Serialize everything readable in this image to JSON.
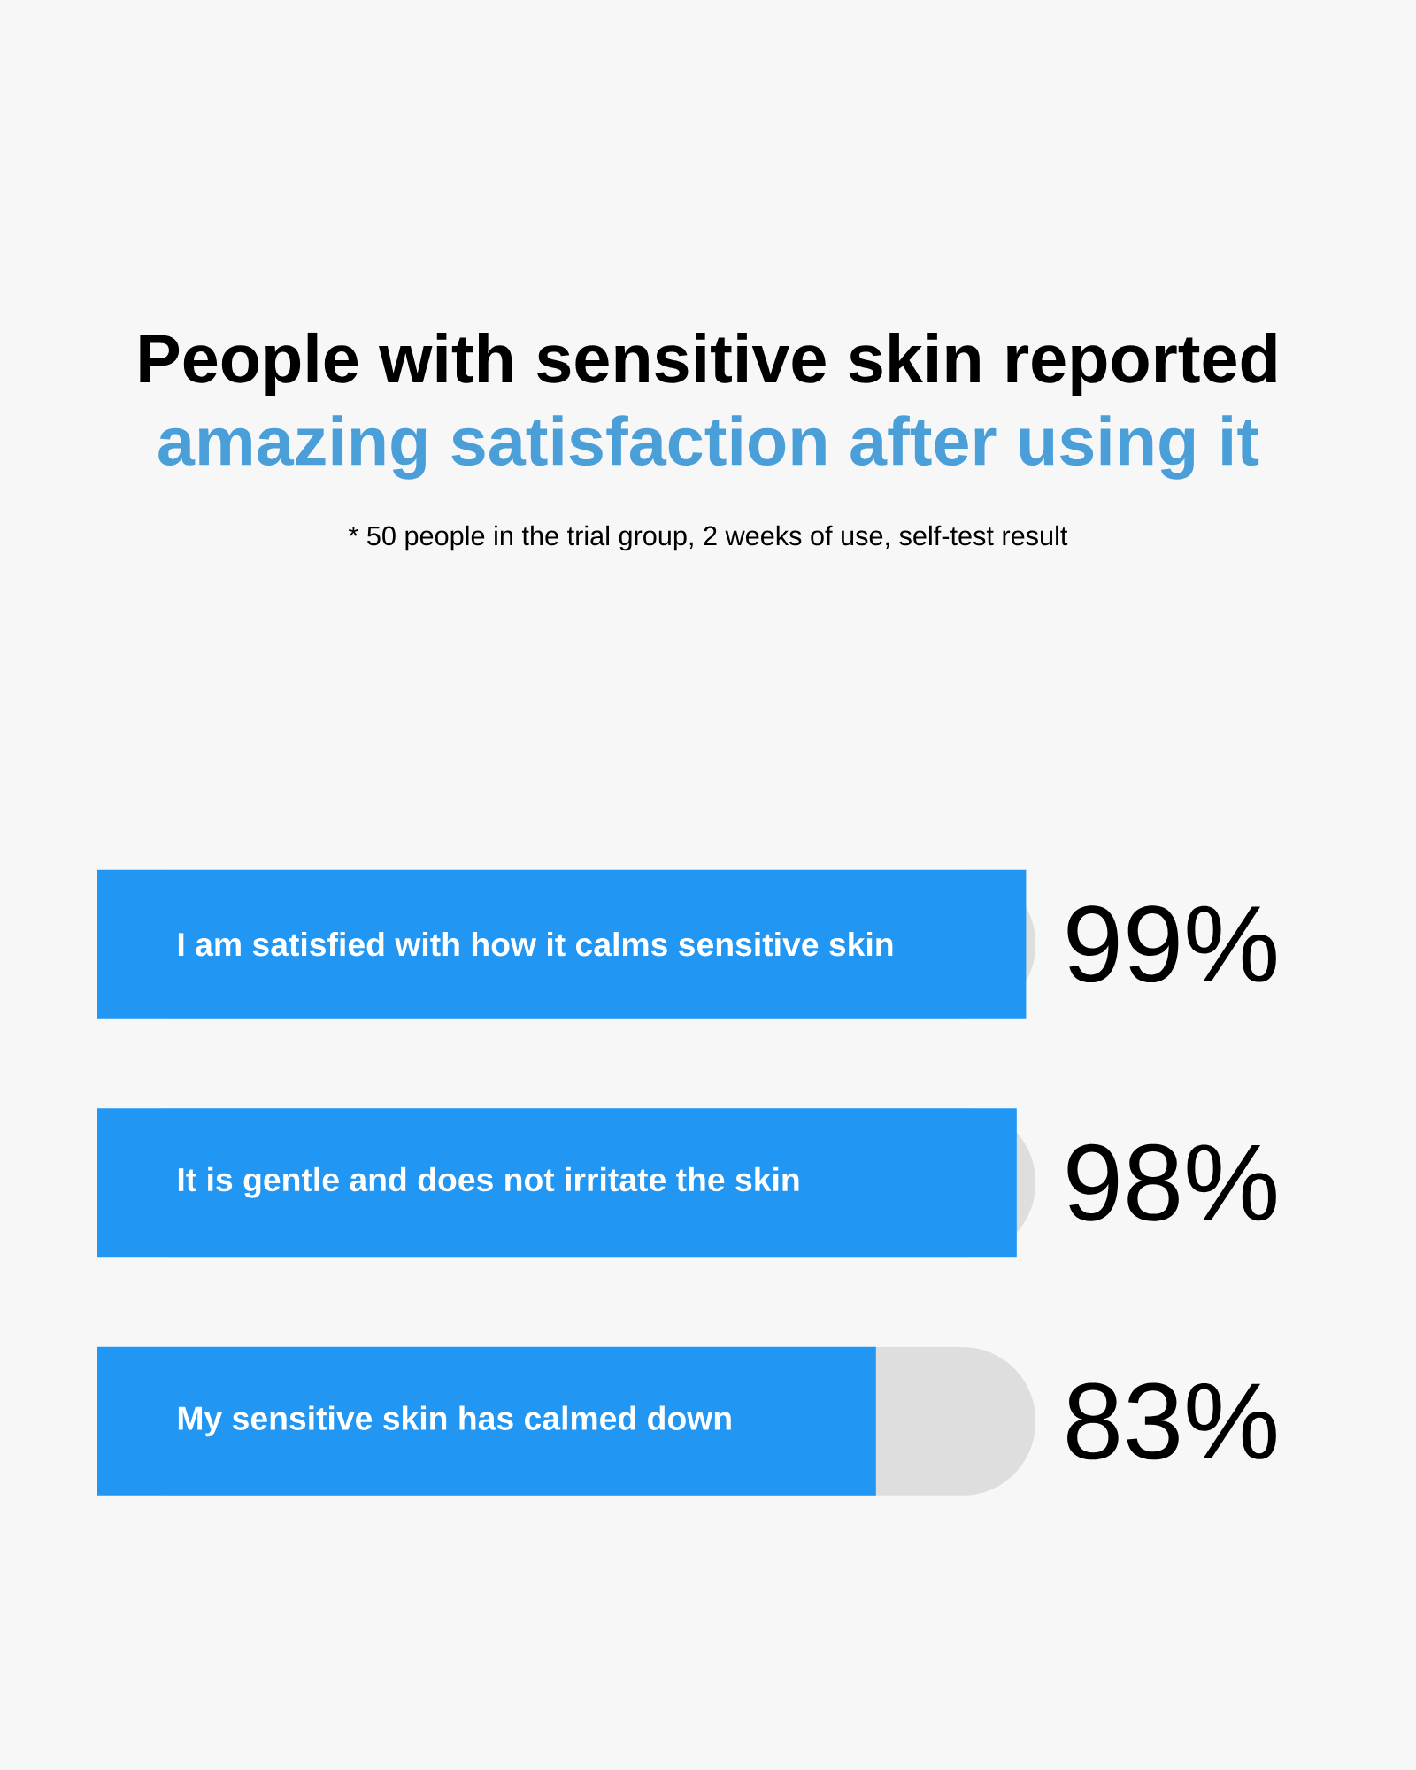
{
  "chart_data": {
    "type": "bar",
    "orientation": "horizontal",
    "title": "People with sensitive skin reported",
    "subtitle": "amazing satisfaction after using it",
    "annotations": [
      "* 50 people in the trial group, 2 weeks of use, self-test result"
    ],
    "categories": [
      "I am satisfied with how it calms sensitive skin",
      "It is gentle and does not irritate the skin",
      "My sensitive skin has calmed down"
    ],
    "values": [
      99,
      98,
      83
    ],
    "value_labels": [
      "99%",
      "98%",
      "83%"
    ],
    "color": "#2196f3",
    "xlim": [
      0,
      100
    ],
    "tick_labels": false
  }
}
